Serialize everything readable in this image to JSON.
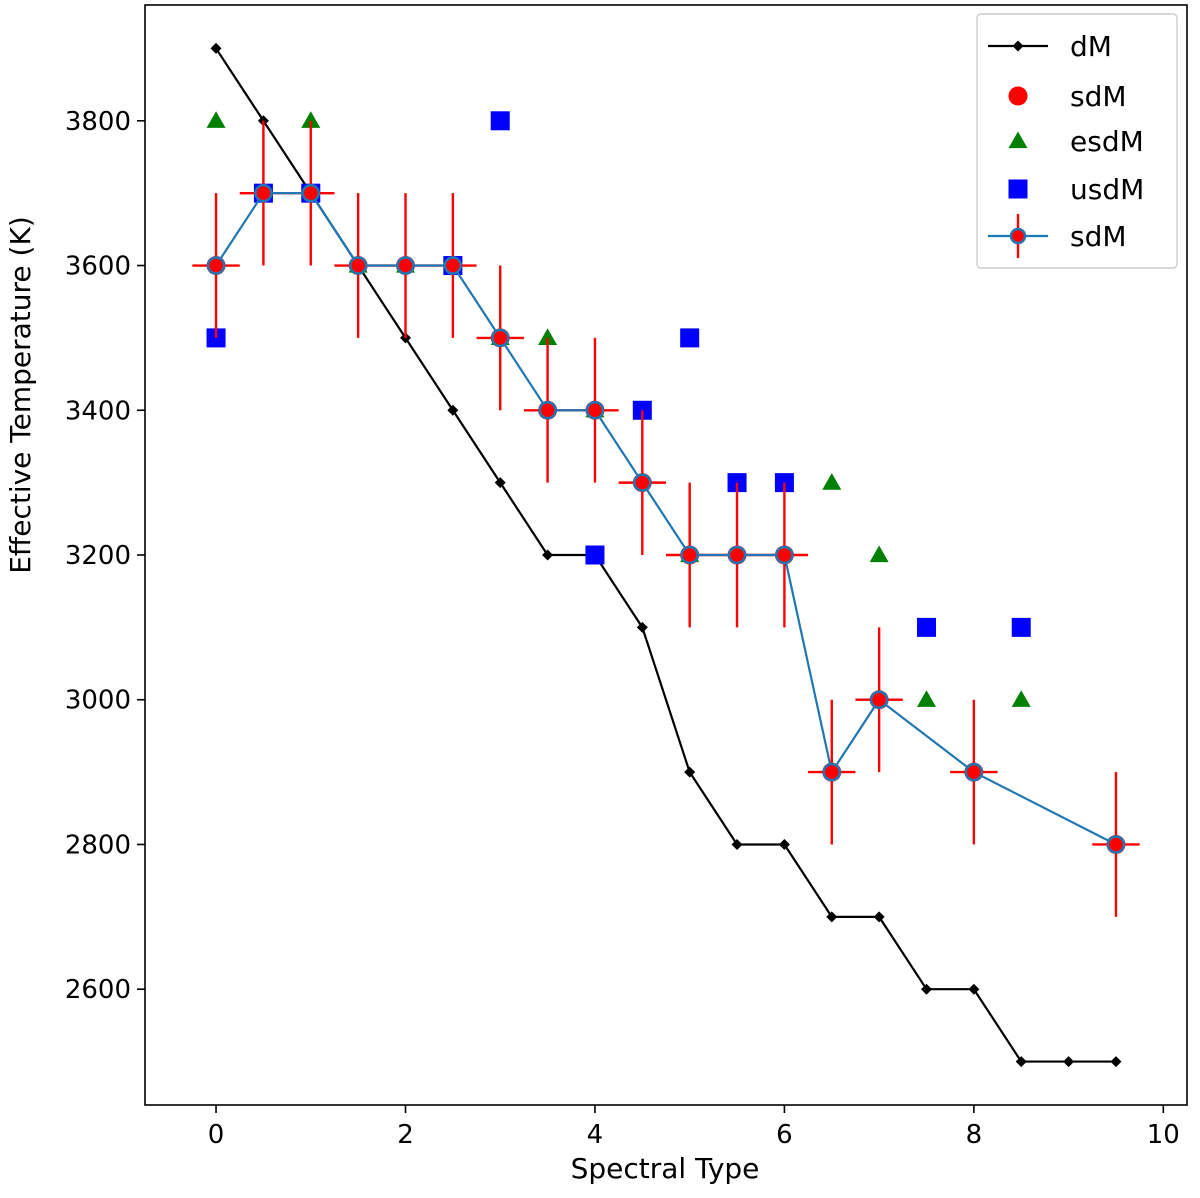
{
  "chart_data": {
    "type": "scatter",
    "title": "",
    "xlabel": "Spectral Type",
    "ylabel": "Effective Temperature (K)",
    "xlim": [
      -0.75,
      10.25
    ],
    "ylim": [
      2440,
      3960
    ],
    "xticks": [
      0,
      2,
      4,
      6,
      8,
      10
    ],
    "yticks": [
      2600,
      2800,
      3000,
      3200,
      3400,
      3600,
      3800
    ],
    "grid": false,
    "legend_position": "top-right",
    "series": [
      {
        "name": "dM",
        "style": "line-diamond",
        "color": "#000000",
        "x": [
          0,
          0.5,
          1,
          1.5,
          2,
          2.5,
          3,
          3.5,
          4,
          4.5,
          5,
          5.5,
          6,
          6.5,
          7,
          7.5,
          8,
          8.5,
          9,
          9.5
        ],
        "y": [
          3900,
          3800,
          3700,
          3600,
          3500,
          3400,
          3300,
          3200,
          3200,
          3100,
          2900,
          2800,
          2800,
          2700,
          2700,
          2600,
          2600,
          2500,
          2500,
          2500
        ]
      },
      {
        "name": "sdM",
        "style": "circle",
        "color": "#ff0000",
        "x": [
          0,
          0.5,
          1,
          1.5,
          2,
          2.5,
          3,
          3.5,
          4,
          4.5,
          5,
          5.5,
          6,
          6.5,
          7,
          8,
          9.5
        ],
        "y": [
          3600,
          3700,
          3700,
          3600,
          3600,
          3600,
          3500,
          3400,
          3400,
          3300,
          3200,
          3200,
          3200,
          2900,
          3000,
          2900,
          2800
        ]
      },
      {
        "name": "esdM",
        "style": "triangle",
        "color": "#008000",
        "x": [
          0,
          1,
          1.5,
          2,
          3,
          3.5,
          4,
          5,
          6.5,
          7,
          7.5,
          8.5
        ],
        "y": [
          3800,
          3800,
          3600,
          3600,
          3500,
          3500,
          3400,
          3200,
          3300,
          3200,
          3000,
          3000
        ]
      },
      {
        "name": "usdM",
        "style": "square",
        "color": "#0000ff",
        "x": [
          0,
          0.5,
          1,
          2.5,
          3,
          4,
          4.5,
          5,
          5.5,
          6,
          7.5,
          8.5
        ],
        "y": [
          3500,
          3700,
          3700,
          3600,
          3800,
          3200,
          3400,
          3500,
          3300,
          3300,
          3100,
          3100
        ]
      },
      {
        "name": "sdM",
        "style": "errorbar-line",
        "color": "#1f77b4",
        "marker_color": "#ff0000",
        "error_color": "#ff0000",
        "x": [
          0,
          0.5,
          1,
          1.5,
          2,
          2.5,
          3,
          3.5,
          4,
          4.5,
          5,
          5.5,
          6,
          6.5,
          7,
          8,
          9.5
        ],
        "y": [
          3600,
          3700,
          3700,
          3600,
          3600,
          3600,
          3500,
          3400,
          3400,
          3300,
          3200,
          3200,
          3200,
          2900,
          3000,
          2900,
          2800
        ],
        "xerr": 0.25,
        "yerr": 100
      }
    ]
  }
}
